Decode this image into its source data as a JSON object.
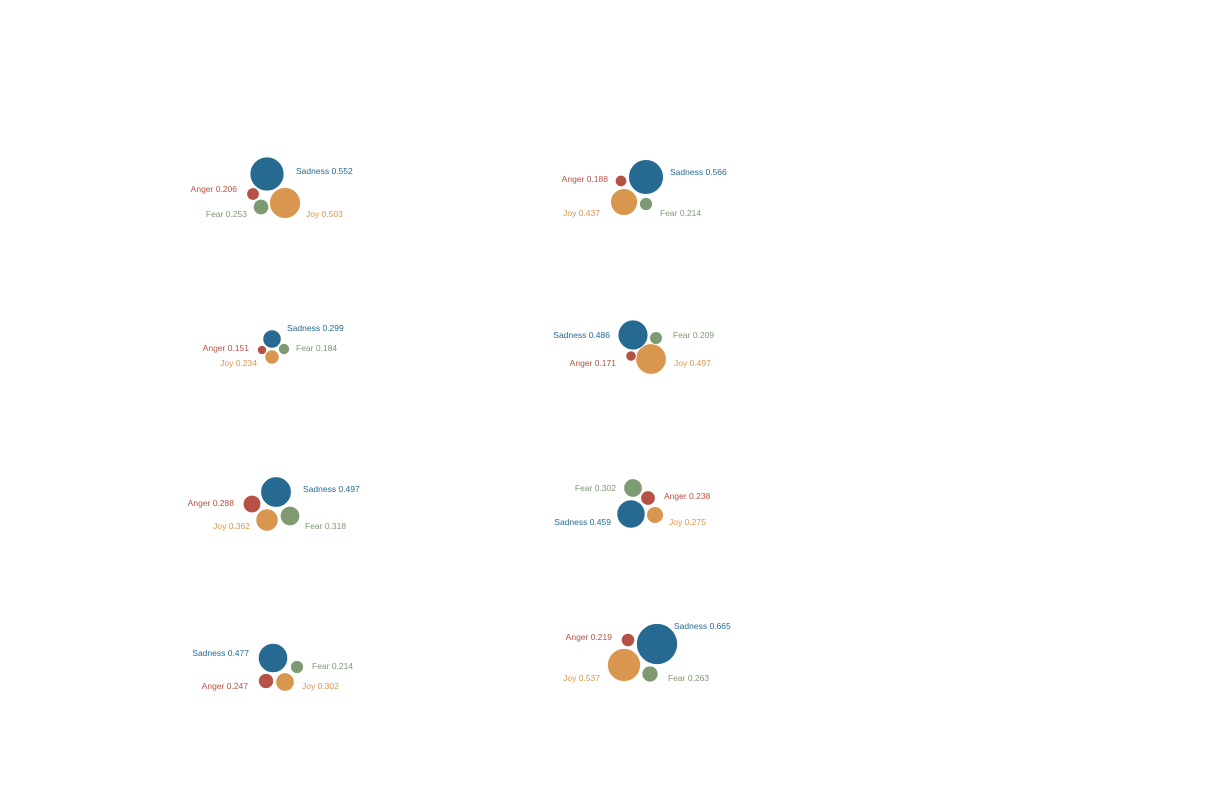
{
  "colors": {
    "Sadness": "#266a92",
    "Anger": "#b55245",
    "Fear": "#7d9a72",
    "Joy": "#d9964e"
  },
  "chart_data": [
    {
      "type": "bubble",
      "values": {
        "Sadness": 0.552,
        "Anger": 0.206,
        "Fear": 0.253,
        "Joy": 0.503
      },
      "labels": {
        "Sadness": "Sadness 0.552",
        "Anger": "Anger 0.206",
        "Fear": "Fear 0.253",
        "Joy": "Joy 0.503"
      }
    },
    {
      "type": "bubble",
      "values": {
        "Sadness": 0.566,
        "Anger": 0.188,
        "Fear": 0.214,
        "Joy": 0.437
      },
      "labels": {
        "Sadness": "Sadness 0.566",
        "Anger": "Anger 0.188",
        "Fear": "Fear 0.214",
        "Joy": "Joy 0.437"
      }
    },
    {
      "type": "bubble",
      "values": {
        "Sadness": 0.299,
        "Anger": 0.151,
        "Fear": 0.184,
        "Joy": 0.234
      },
      "labels": {
        "Sadness": "Sadness 0.299",
        "Anger": "Anger 0.151",
        "Fear": "Fear 0.184",
        "Joy": "Joy 0.234"
      }
    },
    {
      "type": "bubble",
      "values": {
        "Sadness": 0.486,
        "Anger": 0.171,
        "Fear": 0.209,
        "Joy": 0.497
      },
      "labels": {
        "Sadness": "Sadness 0.486",
        "Anger": "Anger 0.171",
        "Fear": "Fear 0.209",
        "Joy": "Joy 0.497"
      }
    },
    {
      "type": "bubble",
      "values": {
        "Sadness": 0.497,
        "Anger": 0.288,
        "Fear": 0.318,
        "Joy": 0.362
      },
      "labels": {
        "Sadness": "Sadness 0.497",
        "Anger": "Anger 0.288",
        "Fear": "Fear 0.318",
        "Joy": "Joy 0.362"
      }
    },
    {
      "type": "bubble",
      "values": {
        "Sadness": 0.459,
        "Anger": 0.238,
        "Fear": 0.302,
        "Joy": 0.275
      },
      "labels": {
        "Sadness": "Sadness 0.459",
        "Anger": "Anger 0.238",
        "Fear": "Fear 0.302",
        "Joy": "Joy 0.275"
      }
    },
    {
      "type": "bubble",
      "values": {
        "Sadness": 0.477,
        "Anger": 0.247,
        "Fear": 0.214,
        "Joy": 0.302
      },
      "labels": {
        "Sadness": "Sadness 0.477",
        "Anger": "Anger 0.247",
        "Fear": "Fear 0.214",
        "Joy": "Joy 0.302"
      }
    },
    {
      "type": "bubble",
      "values": {
        "Sadness": 0.665,
        "Anger": 0.219,
        "Fear": 0.263,
        "Joy": 0.537
      },
      "labels": {
        "Sadness": "Sadness 0.665",
        "Anger": "Anger 0.219",
        "Fear": "Fear 0.263",
        "Joy": "Joy 0.537"
      }
    }
  ]
}
